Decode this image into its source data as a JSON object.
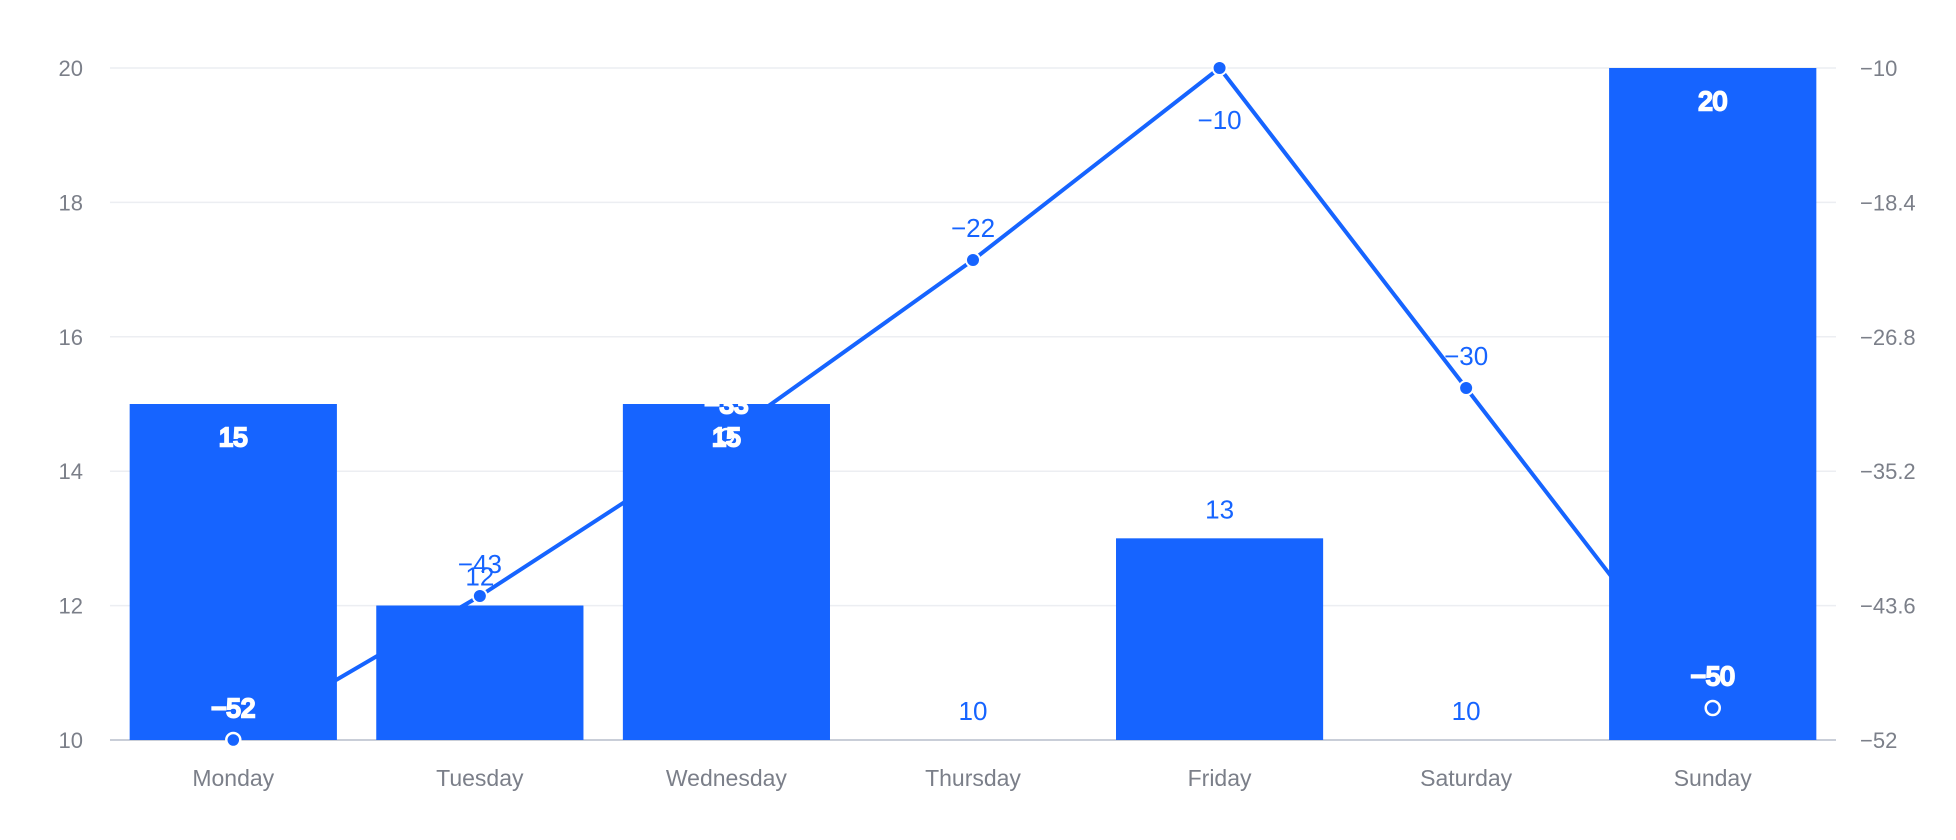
{
  "chart_data": {
    "type": "bar",
    "categories": [
      "Monday",
      "Tuesday",
      "Wednesday",
      "Thursday",
      "Friday",
      "Saturday",
      "Sunday"
    ],
    "series": [
      {
        "type": "bar",
        "axis": "left",
        "values": [
          15,
          12,
          15,
          10,
          13,
          10,
          20
        ],
        "data_labels": [
          "15",
          "12",
          "15",
          "10",
          "13",
          "10",
          "20"
        ]
      },
      {
        "type": "line",
        "axis": "right",
        "values": [
          -52,
          -43,
          -33,
          -22,
          -10,
          -30,
          -50
        ],
        "data_labels": [
          "−52",
          "−43",
          "−33",
          "−22",
          "−10",
          "−30",
          "−50"
        ]
      }
    ],
    "y_left": {
      "ylim": [
        10,
        20
      ],
      "ticks": [
        "10",
        "12",
        "14",
        "16",
        "18",
        "20"
      ]
    },
    "y_right": {
      "ylim": [
        -52,
        -10
      ],
      "ticks": [
        "−52",
        "−43.6",
        "−35.2",
        "−26.8",
        "−18.4",
        "−10"
      ]
    },
    "grid": true,
    "legend": "none",
    "title": "",
    "xlabel": "",
    "ylabel": "",
    "colors": {
      "series": "#1664ff",
      "grid": "#eceef2",
      "axis": "#c9ced8",
      "tick_text": "#7b7f89",
      "background": "#ffffff"
    }
  }
}
